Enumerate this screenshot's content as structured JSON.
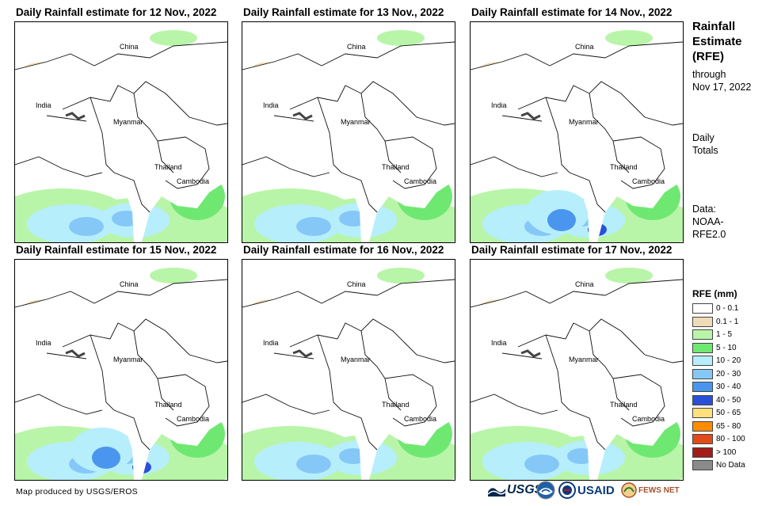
{
  "panels": [
    {
      "title": "Daily Rainfall estimate for 12 Nov., 2022",
      "intensity": 1
    },
    {
      "title": "Daily Rainfall estimate for 13 Nov., 2022",
      "intensity": 1
    },
    {
      "title": "Daily Rainfall estimate for 14 Nov., 2022",
      "intensity": 2
    },
    {
      "title": "Daily Rainfall estimate for 15 Nov., 2022",
      "intensity": 2
    },
    {
      "title": "Daily Rainfall estimate for 16 Nov., 2022",
      "intensity": 1
    },
    {
      "title": "Daily Rainfall estimate for 17 Nov., 2022",
      "intensity": 1
    }
  ],
  "map_labels": {
    "china": "China",
    "india": "India",
    "myanmar": "Myanmar",
    "thailand": "Thailand",
    "cambodia": "Cambodia"
  },
  "right_panel": {
    "title_line1": "Rainfall",
    "title_line2": "Estimate",
    "title_line3": "(RFE)",
    "through": "through",
    "date": "Nov 17, 2022",
    "daily": "Daily",
    "totals": "Totals",
    "data_label": "Data:",
    "source1": "NOAA-",
    "source2": "RFE2.0"
  },
  "legend": {
    "title": "RFE (mm)",
    "items": [
      {
        "label": "0 - 0.1",
        "color": "#ffffff"
      },
      {
        "label": "0.1 - 1",
        "color": "#efdcb6"
      },
      {
        "label": "1 - 5",
        "color": "#b8f5a8"
      },
      {
        "label": "5 - 10",
        "color": "#6fe872"
      },
      {
        "label": "10 - 20",
        "color": "#b7eefc"
      },
      {
        "label": "20 - 30",
        "color": "#85c8f7"
      },
      {
        "label": "30 - 40",
        "color": "#4a96ee"
      },
      {
        "label": "40 - 50",
        "color": "#2a50d8"
      },
      {
        "label": "50 - 65",
        "color": "#ffe07a"
      },
      {
        "label": "65 - 80",
        "color": "#ff8c00"
      },
      {
        "label": "80 - 100",
        "color": "#e34a1a"
      },
      {
        "label": "> 100",
        "color": "#a21c1c"
      },
      {
        "label": "No Data",
        "color": "#8a8a8a"
      }
    ]
  },
  "credit": "Map produced by USGS/EROS",
  "logos": {
    "usgs": "USGS",
    "usaid": "USAID",
    "fewsnet": "FEWS NET"
  }
}
